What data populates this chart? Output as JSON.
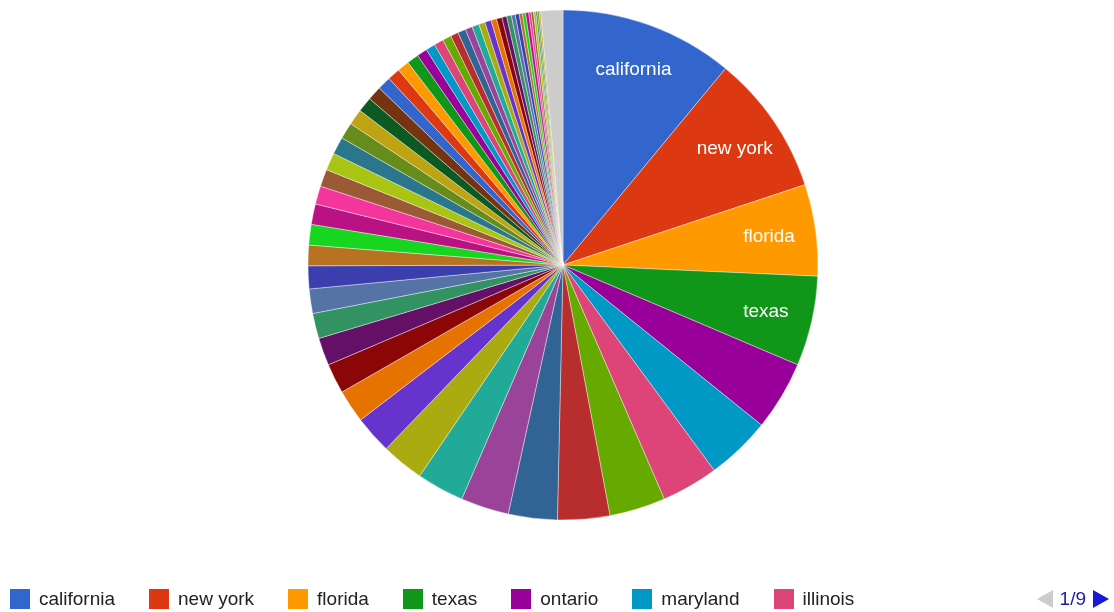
{
  "chart_data": {
    "type": "pie",
    "categories": [
      "california",
      "new york",
      "florida",
      "texas",
      "ontario",
      "maryland",
      "illinois",
      null,
      null,
      null,
      null,
      null,
      null,
      null,
      null,
      null,
      null,
      null,
      null,
      null,
      null,
      null,
      null,
      null,
      null,
      null,
      null,
      null,
      null,
      null,
      null,
      null,
      null,
      null,
      null,
      null,
      null,
      null,
      null,
      null,
      null,
      null,
      null,
      null,
      null,
      null,
      null,
      null,
      null,
      null,
      null,
      null,
      null,
      null,
      null,
      null,
      null,
      null,
      null,
      null,
      null
    ],
    "values": [
      11.0,
      8.9,
      5.8,
      5.7,
      4.4,
      4.1,
      3.6,
      3.55,
      3.3,
      3.1,
      3.05,
      3.0,
      2.7,
      2.4,
      2.1,
      1.9,
      1.75,
      1.6,
      1.55,
      1.45,
      1.3,
      1.3,
      1.3,
      1.15,
      1.1,
      1.1,
      1.1,
      1.05,
      1.0,
      0.95,
      0.9,
      0.85,
      0.8,
      0.75,
      0.75,
      0.65,
      0.6,
      0.6,
      0.55,
      0.5,
      0.5,
      0.45,
      0.45,
      0.4,
      0.4,
      0.35,
      0.35,
      0.3,
      0.3,
      0.25,
      0.25,
      0.2,
      0.2,
      0.2,
      0.15,
      0.15,
      0.15,
      0.1,
      0.1,
      0.1,
      1.4
    ],
    "colors": [
      "#3366cc",
      "#dc3912",
      "#ff9900",
      "#109618",
      "#990099",
      "#0099c6",
      "#dd4477",
      "#66aa00",
      "#b82e2e",
      "#316395",
      "#994499",
      "#22aa99",
      "#aaaa11",
      "#6633cc",
      "#e67300",
      "#8b0707",
      "#651067",
      "#329262",
      "#5574a6",
      "#3b3eac",
      "#b77322",
      "#16d620",
      "#b91383",
      "#f4359e",
      "#9c5935",
      "#a9c413",
      "#2a778d",
      "#668d1c",
      "#bea413",
      "#0c5922",
      "#743411",
      "#3366cc",
      "#dc3912",
      "#ff9900",
      "#109618",
      "#990099",
      "#0099c6",
      "#dd4477",
      "#66aa00",
      "#b82e2e",
      "#316395",
      "#994499",
      "#22aa99",
      "#aaaa11",
      "#6633cc",
      "#e67300",
      "#8b0707",
      "#651067",
      "#329262",
      "#5574a6",
      "#3b3eac",
      "#b77322",
      "#16d620",
      "#b91383",
      "#f4359e",
      "#9c5935",
      "#a9c413",
      "#2a778d",
      "#668d1c",
      "#bea413",
      "#cccccc"
    ],
    "legend": "bottom",
    "annotations": [
      "1/9"
    ]
  }
}
